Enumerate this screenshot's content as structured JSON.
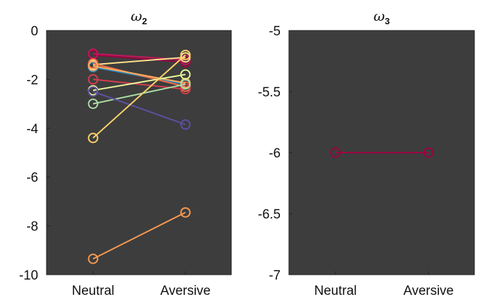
{
  "chart_data": [
    {
      "type": "line",
      "title": "ω",
      "title_subscript": "2",
      "categories": [
        "Neutral",
        "Aversive"
      ],
      "ylim": [
        -10,
        0
      ],
      "yticks": [
        0,
        -2,
        -4,
        -6,
        -8,
        -10
      ],
      "background": "#3d3d3d",
      "grid": false,
      "series": [
        {
          "values": [
            -1.0,
            -1.3
          ],
          "color": "#9e0142"
        },
        {
          "values": [
            -0.95,
            -1.2
          ],
          "color": "#c2185b"
        },
        {
          "values": [
            -1.4,
            -1.1
          ],
          "color": "#fee08b"
        },
        {
          "values": [
            -1.5,
            -2.2
          ],
          "color": "#3288bd"
        },
        {
          "values": [
            -1.35,
            -2.3
          ],
          "color": "#f46d43"
        },
        {
          "values": [
            -1.45,
            -2.15
          ],
          "color": "#fdae61"
        },
        {
          "values": [
            -2.0,
            -2.4
          ],
          "color": "#d53e4f"
        },
        {
          "values": [
            -2.45,
            -1.8
          ],
          "color": "#e6f598"
        },
        {
          "values": [
            -3.0,
            -2.2
          ],
          "color": "#abdda4"
        },
        {
          "values": [
            -2.5,
            -3.85
          ],
          "color": "#5e4fa2"
        },
        {
          "values": [
            -4.4,
            -1.0
          ],
          "color": "#fdd36a"
        },
        {
          "values": [
            -9.35,
            -7.45
          ],
          "color": "#f99a50"
        }
      ]
    },
    {
      "type": "line",
      "title": "ω",
      "title_subscript": "3",
      "categories": [
        "Neutral",
        "Aversive"
      ],
      "ylim": [
        -7,
        -5
      ],
      "yticks": [
        -5,
        -5.5,
        -6,
        -6.5,
        -7
      ],
      "background": "#3d3d3d",
      "grid": false,
      "series": [
        {
          "values": [
            -6.0,
            -6.0
          ],
          "color": "#9e0142"
        }
      ]
    }
  ]
}
